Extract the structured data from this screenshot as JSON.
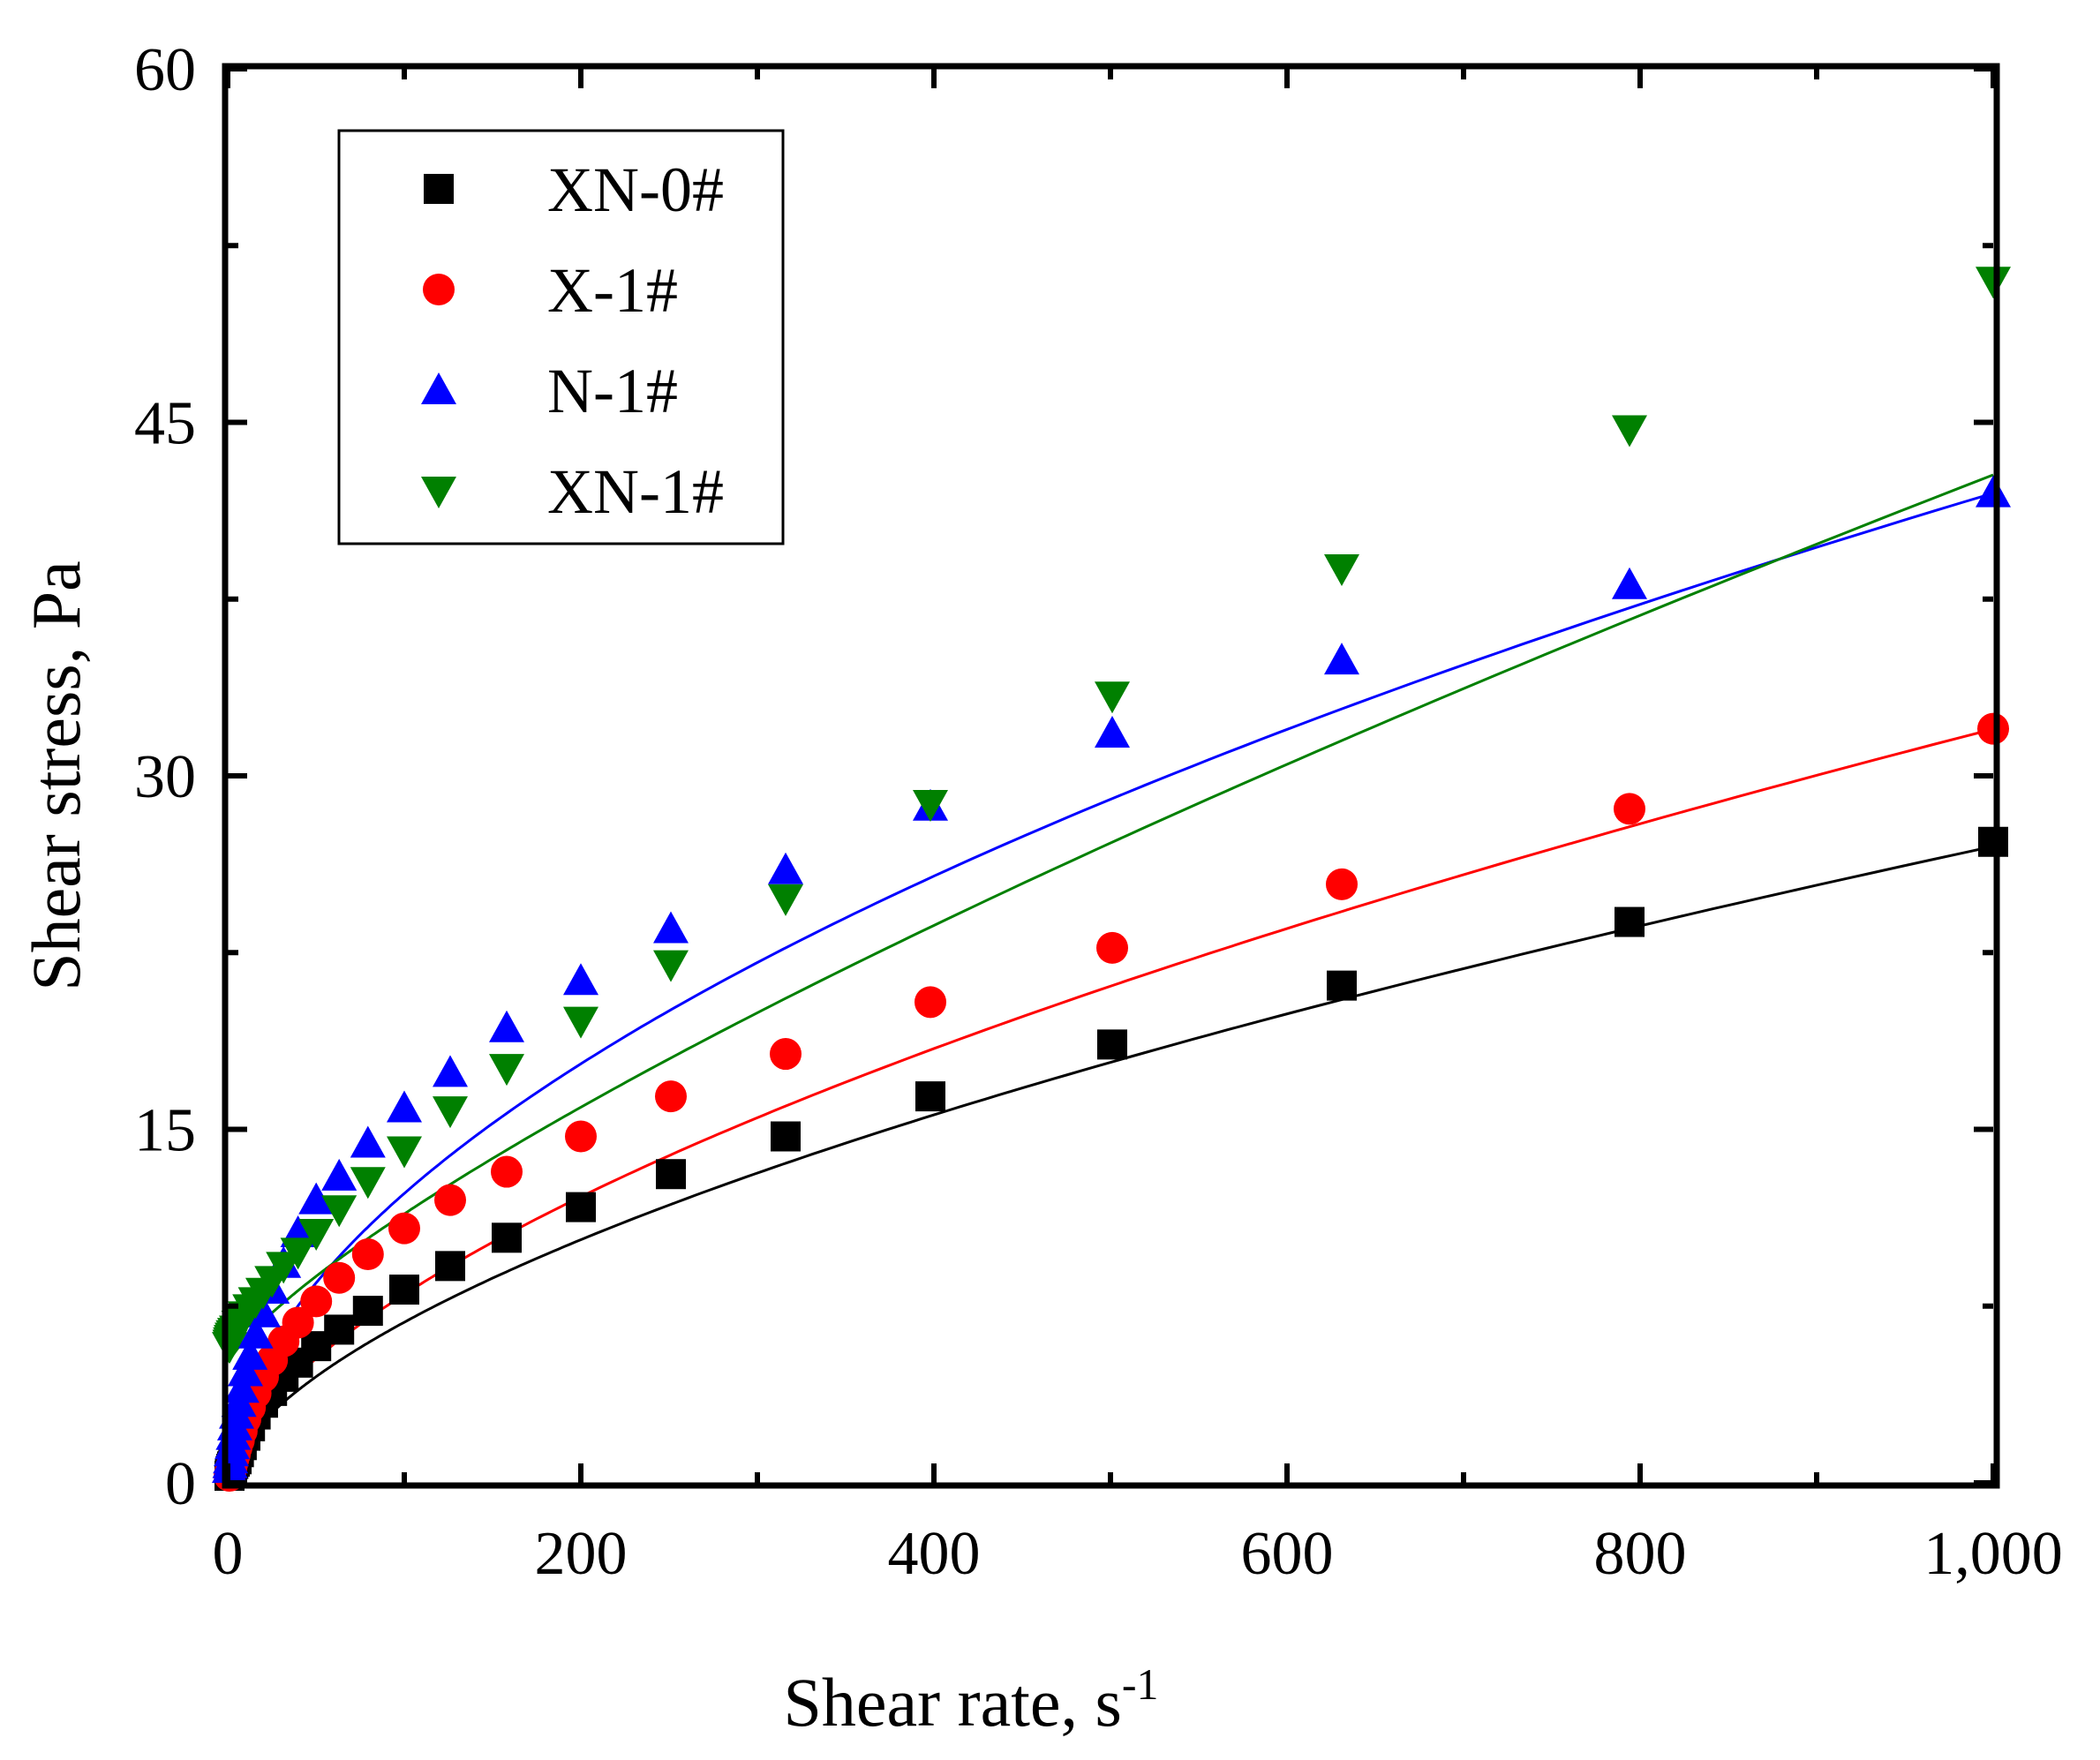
{
  "chart_data": {
    "type": "scatter",
    "title": "",
    "xlabel": "Shear rate, s",
    "xlabel_superscript": "-1",
    "ylabel": "Shear stress, Pa",
    "xlim": [
      0,
      1000
    ],
    "ylim": [
      0,
      60
    ],
    "x_ticks": [
      0,
      200,
      400,
      600,
      800,
      1000
    ],
    "x_tick_labels": [
      "0",
      "200",
      "400",
      "600",
      "800",
      "1,000"
    ],
    "y_ticks": [
      0,
      15,
      30,
      45,
      60
    ],
    "y_tick_labels": [
      "0",
      "15",
      "30",
      "45",
      "60"
    ],
    "x_minor_ticks": [
      100,
      300,
      500,
      700,
      900
    ],
    "y_minor_ticks": [
      7.5,
      22.5,
      37.5,
      52.5
    ],
    "grid": false,
    "legend_position": "top-left",
    "x": [
      1,
      1.26,
      1.58,
      2,
      2.51,
      3.16,
      3.98,
      5.01,
      6.31,
      7.94,
      10,
      12.6,
      15.8,
      20,
      25.1,
      31.6,
      39.8,
      50.1,
      63.1,
      79.4,
      100,
      126,
      158,
      200,
      251,
      316,
      398,
      501,
      631,
      794,
      1000
    ],
    "series": [
      {
        "name": "XN-0#",
        "marker": "square",
        "color": "#000000",
        "values": [
          0.3,
          0.4,
          0.5,
          0.6,
          0.7,
          0.8,
          0.9,
          1.0,
          1.3,
          1.6,
          2.0,
          2.4,
          2.9,
          3.4,
          3.9,
          4.5,
          5.1,
          5.8,
          6.5,
          7.3,
          8.2,
          9.2,
          10.4,
          11.7,
          13.1,
          14.7,
          16.4,
          18.6,
          21.1,
          23.8,
          27.2
        ]
      },
      {
        "name": "X-1#",
        "marker": "circle",
        "color": "#ff0000",
        "values": [
          0.3,
          0.4,
          0.5,
          0.6,
          0.8,
          1.0,
          1.2,
          1.5,
          1.8,
          2.2,
          2.7,
          3.2,
          3.8,
          4.5,
          5.2,
          6.0,
          6.8,
          7.7,
          8.7,
          9.7,
          10.8,
          12.0,
          13.2,
          14.7,
          16.4,
          18.2,
          20.4,
          22.7,
          25.4,
          28.6,
          32.0
        ]
      },
      {
        "name": "N-1#",
        "marker": "triangle-up",
        "color": "#0000ff",
        "values": [
          0.6,
          0.8,
          1.0,
          1.3,
          1.6,
          2.0,
          2.4,
          2.9,
          3.4,
          4.0,
          4.7,
          5.4,
          6.3,
          7.2,
          8.2,
          9.3,
          10.6,
          12.0,
          13.0,
          14.4,
          15.9,
          17.4,
          19.3,
          21.3,
          23.5,
          26.0,
          28.7,
          31.8,
          34.9,
          38.1,
          42.0
        ]
      },
      {
        "name": "XN-1#",
        "marker": "triangle-down",
        "color": "#008000",
        "values": [
          5.8,
          5.9,
          6.0,
          6.1,
          6.2,
          6.3,
          6.4,
          6.5,
          6.7,
          6.9,
          7.1,
          7.4,
          7.7,
          8.1,
          8.6,
          9.2,
          9.8,
          10.6,
          11.6,
          12.8,
          14.1,
          15.8,
          17.6,
          19.6,
          22.0,
          24.8,
          28.8,
          33.4,
          38.8,
          44.7,
          51.0
        ]
      }
    ],
    "fits": [
      {
        "name": "XN-0#",
        "color": "#000000",
        "k": 0.434,
        "n": 0.598
      },
      {
        "name": "X-1#",
        "color": "#ff0000",
        "k": 0.5,
        "n": 0.602
      },
      {
        "name": "N-1#",
        "color": "#0000ff",
        "k": 1.05,
        "n": 0.534
      },
      {
        "name": "XN-1#",
        "color": "#008000",
        "tau0": 5.0,
        "k": 0.185,
        "n": 0.77
      }
    ]
  }
}
